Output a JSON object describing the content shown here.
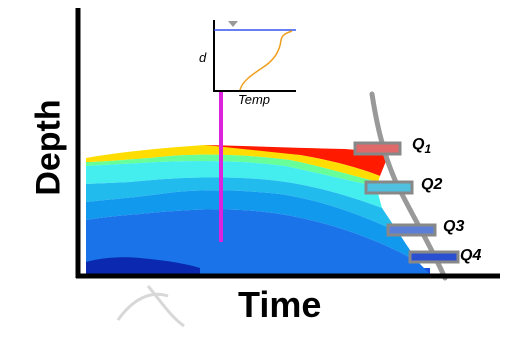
{
  "axes": {
    "y_title": "Depth",
    "x_title": "Time"
  },
  "probes": [
    {
      "label_main": "Q",
      "label_sub": "1",
      "color": "#e06a6a"
    },
    {
      "label_main": "Q",
      "label_sub": "2",
      "color": "#4fc0e0"
    },
    {
      "label_main": "Q",
      "label_sub": "3",
      "color": "#5b7fd6"
    },
    {
      "label_main": "Q",
      "label_sub": "4",
      "color": "#2a4fd0"
    }
  ],
  "inset": {
    "ylabel": "d",
    "xlabel": "Temp",
    "surface_color": "#3355ee",
    "profile_color": "#f0a020"
  },
  "colors": {
    "profile_line": "#dd22dd",
    "layers": [
      "#ff1a00",
      "#ffdd00",
      "#66ff99",
      "#44eeee",
      "#22bbee",
      "#1199ee",
      "#1a73e8",
      "#1a50e0",
      "#0a28b0"
    ],
    "slope": "#999999"
  }
}
